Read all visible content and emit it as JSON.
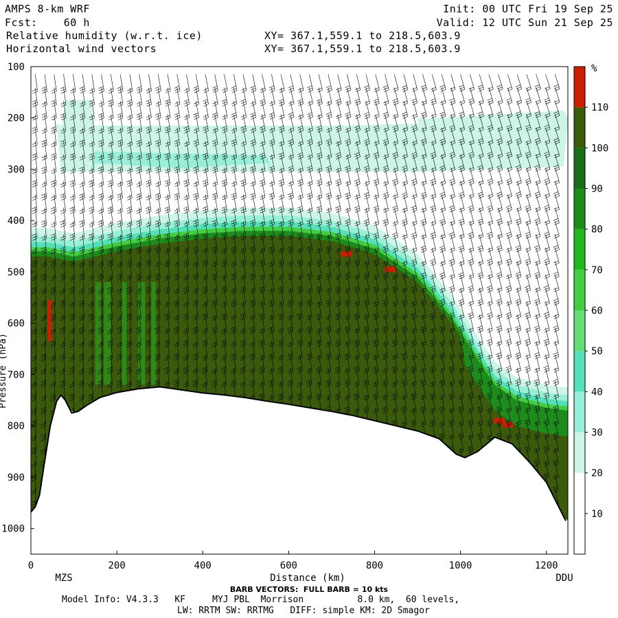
{
  "header": {
    "model": "AMPS 8-km WRF",
    "fcst_label": "Fcst:",
    "fcst_value": "60 h",
    "field1": "Relative humidity (w.r.t. ice)",
    "field2": "Horizontal wind vectors",
    "init": "Init: 00 UTC Fri 19 Sep 25",
    "valid": "Valid: 12 UTC Sun 21 Sep 25",
    "xy1": "XY= 367.1,559.1 to 218.5,603.9",
    "xy2": "XY= 367.1,559.1 to 218.5,603.9"
  },
  "footer": {
    "barb": "BARB VECTORS:  FULL BARB = 10 kts",
    "model_info": "Model Info: V4.3.3   KF     MYJ PBL  Morrison          8.0 km,  60 levels,",
    "model_info2": "LW: RRTM SW: RRTMG   DIFF: simple KM: 2D Smagor"
  },
  "colors": {
    "c10": "#ffffff",
    "c20": "#ffffff",
    "c30": "#ccf5e8",
    "c40": "#99eed8",
    "c50": "#55e0b8",
    "c60": "#66dd77",
    "c70": "#44cc44",
    "c80": "#22b822",
    "c90": "#1d8c1d",
    "c100": "#1a6e1a",
    "c110": "#3b5a0c",
    "c120": "#c82000"
  },
  "chart_data": {
    "type": "heatmap",
    "xlabel": "Distance (km)",
    "ylabel": "Pressure (hPa)",
    "xlim": [
      0,
      1250
    ],
    "ylim": [
      1050,
      100
    ],
    "x_ticks": [
      "0",
      "200",
      "400",
      "600",
      "800",
      "1000",
      "1200"
    ],
    "y_ticks": [
      "100",
      "200",
      "300",
      "400",
      "500",
      "600",
      "700",
      "800",
      "900",
      "1000"
    ],
    "x_endpoints": [
      "MZS",
      "DDU"
    ],
    "colorbar_unit": "%",
    "colorbar_levels": [
      "10",
      "20",
      "30",
      "40",
      "50",
      "60",
      "70",
      "80",
      "90",
      "100",
      "110"
    ],
    "terrain_surface_hpa": [
      [
        0,
        968
      ],
      [
        10,
        958
      ],
      [
        20,
        935
      ],
      [
        30,
        880
      ],
      [
        45,
        800
      ],
      [
        60,
        752
      ],
      [
        70,
        740
      ],
      [
        80,
        750
      ],
      [
        95,
        775
      ],
      [
        110,
        772
      ],
      [
        130,
        760
      ],
      [
        160,
        745
      ],
      [
        200,
        735
      ],
      [
        250,
        728
      ],
      [
        300,
        724
      ],
      [
        350,
        730
      ],
      [
        400,
        736
      ],
      [
        450,
        740
      ],
      [
        500,
        745
      ],
      [
        550,
        752
      ],
      [
        600,
        758
      ],
      [
        650,
        765
      ],
      [
        700,
        772
      ],
      [
        750,
        780
      ],
      [
        800,
        790
      ],
      [
        850,
        800
      ],
      [
        900,
        810
      ],
      [
        950,
        825
      ],
      [
        990,
        855
      ],
      [
        1010,
        862
      ],
      [
        1040,
        850
      ],
      [
        1080,
        822
      ],
      [
        1120,
        835
      ],
      [
        1160,
        870
      ],
      [
        1200,
        910
      ],
      [
        1230,
        960
      ],
      [
        1245,
        985
      ]
    ],
    "rh_top_hpa": [
      [
        40,
        470
      ],
      [
        100,
        480
      ],
      [
        150,
        470
      ],
      [
        200,
        460
      ],
      [
        300,
        445
      ],
      [
        400,
        435
      ],
      [
        500,
        430
      ],
      [
        600,
        430
      ],
      [
        700,
        440
      ],
      [
        800,
        465
      ],
      [
        900,
        520
      ],
      [
        980,
        600
      ],
      [
        1040,
        680
      ],
      [
        1080,
        730
      ],
      [
        1130,
        760
      ],
      [
        1200,
        775
      ],
      [
        1245,
        780
      ]
    ],
    "high_rh_patches_km": [
      [
        735,
        465
      ],
      [
        837,
        495
      ],
      [
        1090,
        790
      ],
      [
        1110,
        798
      ],
      [
        52,
        560
      ]
    ]
  }
}
